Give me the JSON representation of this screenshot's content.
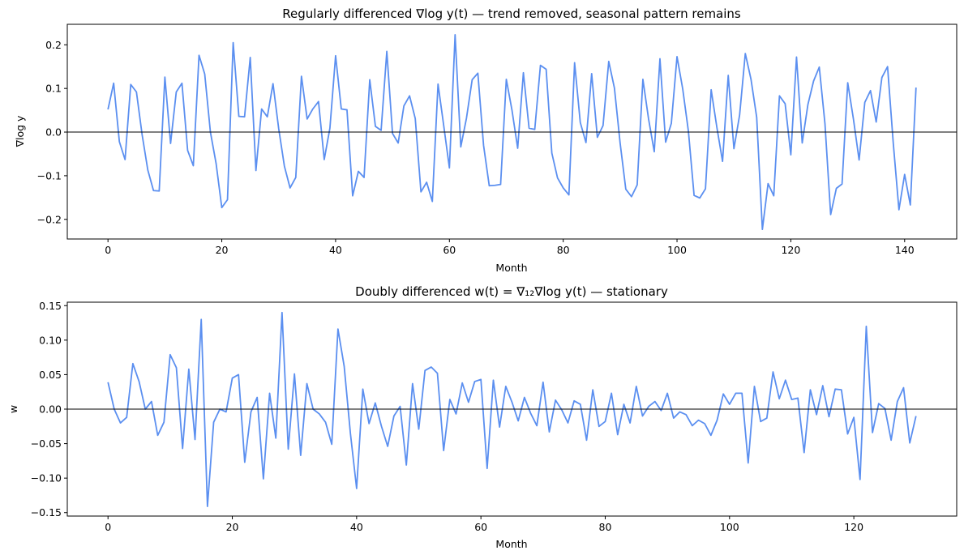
{
  "colors": {
    "line": "#5b8ff0",
    "zero_line": "#000000",
    "axes": "#000000",
    "background": "#ffffff"
  },
  "chart_data": [
    {
      "type": "line",
      "title": "Regularly differenced  ∇log y(t) — trend removed, seasonal pattern remains",
      "xlabel": "Month",
      "ylabel": "∇log y",
      "xlim": [
        -7.15,
        149.15
      ],
      "ylim": [
        -0.245,
        0.247
      ],
      "xticks": [
        0,
        20,
        40,
        60,
        80,
        100,
        120,
        140
      ],
      "yticks": [
        -0.2,
        -0.1,
        0.0,
        0.1,
        0.2
      ],
      "xtick_labels": [
        "0",
        "20",
        "40",
        "60",
        "80",
        "100",
        "120",
        "140"
      ],
      "ytick_labels": [
        "−0.2",
        "−0.1",
        "0.0",
        "0.1",
        "0.2"
      ],
      "hline": 0,
      "grid": false,
      "series": [
        {
          "x_start": 0,
          "values": [
            0.052,
            0.112,
            -0.022,
            -0.063,
            0.109,
            0.092,
            -0.006,
            -0.087,
            -0.134,
            -0.135,
            0.126,
            -0.026,
            0.092,
            0.112,
            -0.042,
            -0.077,
            0.176,
            0.133,
            0.0,
            -0.072,
            -0.173,
            -0.155,
            0.205,
            0.036,
            0.035,
            0.171,
            -0.088,
            0.053,
            0.035,
            0.111,
            0.008,
            -0.078,
            -0.128,
            -0.104,
            0.128,
            0.03,
            0.053,
            0.07,
            -0.063,
            0.009,
            0.175,
            0.053,
            0.051,
            -0.146,
            -0.09,
            -0.104,
            0.12,
            0.013,
            0.004,
            0.185,
            -0.003,
            -0.025,
            0.06,
            0.083,
            0.031,
            -0.137,
            -0.115,
            -0.159,
            0.11,
            0.015,
            -0.082,
            0.223,
            -0.034,
            0.032,
            0.12,
            0.135,
            -0.03,
            -0.123,
            -0.122,
            -0.12,
            0.121,
            0.05,
            -0.037,
            0.136,
            0.009,
            0.006,
            0.153,
            0.144,
            -0.048,
            -0.105,
            -0.128,
            -0.144,
            0.159,
            0.022,
            -0.024,
            0.134,
            -0.012,
            0.015,
            0.162,
            0.101,
            -0.025,
            -0.131,
            -0.148,
            -0.121,
            0.121,
            0.03,
            -0.045,
            0.168,
            -0.023,
            0.02,
            0.173,
            0.099,
            0.002,
            -0.145,
            -0.151,
            -0.13,
            0.097,
            0.011,
            -0.067,
            0.13,
            -0.038,
            0.039,
            0.18,
            0.121,
            0.034,
            -0.223,
            -0.118,
            -0.146,
            0.083,
            0.065,
            -0.052,
            0.172,
            -0.025,
            0.063,
            0.117,
            0.149,
            0.019,
            -0.189,
            -0.129,
            -0.119,
            0.113,
            0.03,
            -0.064,
            0.068,
            0.095,
            0.023,
            0.125,
            0.15,
            -0.025,
            -0.178,
            -0.097,
            -0.167,
            0.102
          ]
        }
      ]
    },
    {
      "type": "line",
      "title": "Doubly differenced  w(t) = ∇₁₂∇log y(t) — stationary",
      "xlabel": "Month",
      "ylabel": "w",
      "xlim": [
        -6.55,
        136.55
      ],
      "ylim": [
        -0.155,
        0.155
      ],
      "xticks": [
        0,
        20,
        40,
        60,
        80,
        100,
        120
      ],
      "yticks": [
        -0.15,
        -0.1,
        -0.05,
        0.0,
        0.05,
        0.1,
        0.15
      ],
      "xtick_labels": [
        "0",
        "20",
        "40",
        "60",
        "80",
        "100",
        "120"
      ],
      "ytick_labels": [
        "−0.15",
        "−0.10",
        "−0.05",
        "0.00",
        "0.05",
        "0.10",
        "0.15"
      ],
      "hline": 0,
      "grid": false,
      "series": [
        {
          "x_start": 0,
          "values": [
            0.039,
            0.0,
            -0.02,
            -0.012,
            0.066,
            0.04,
            0.0,
            0.011,
            -0.038,
            -0.019,
            0.079,
            0.06,
            -0.057,
            0.058,
            -0.044,
            0.13,
            -0.141,
            -0.019,
            0.0,
            -0.004,
            0.045,
            0.05,
            -0.077,
            -0.004,
            0.017,
            -0.101,
            0.023,
            -0.042,
            0.14,
            -0.058,
            0.051,
            -0.067,
            0.037,
            0.0,
            -0.007,
            -0.019,
            -0.051,
            0.116,
            0.062,
            -0.035,
            -0.115,
            0.029,
            -0.021,
            0.009,
            -0.025,
            -0.054,
            -0.01,
            0.004,
            -0.081,
            0.037,
            -0.029,
            0.056,
            0.061,
            0.052,
            -0.06,
            0.014,
            -0.007,
            0.038,
            0.01,
            0.04,
            0.043,
            -0.086,
            0.042,
            -0.026,
            0.033,
            0.01,
            -0.017,
            0.017,
            -0.006,
            -0.024,
            0.039,
            -0.033,
            0.013,
            -0.001,
            -0.02,
            0.012,
            0.007,
            -0.045,
            0.028,
            -0.025,
            -0.018,
            0.023,
            -0.037,
            0.007,
            -0.02,
            0.033,
            -0.01,
            0.004,
            0.011,
            -0.002,
            0.023,
            -0.013,
            -0.004,
            -0.008,
            -0.024,
            -0.016,
            -0.021,
            -0.038,
            -0.016,
            0.022,
            0.007,
            0.023,
            0.023,
            -0.078,
            0.033,
            -0.018,
            -0.013,
            0.054,
            0.015,
            0.042,
            0.014,
            0.016,
            -0.063,
            0.028,
            -0.008,
            0.034,
            -0.011,
            0.029,
            0.028,
            -0.036,
            -0.012,
            -0.102,
            0.12,
            -0.034,
            0.008,
            0.001,
            -0.045,
            0.011,
            0.031,
            -0.049,
            -0.01
          ]
        }
      ]
    }
  ]
}
